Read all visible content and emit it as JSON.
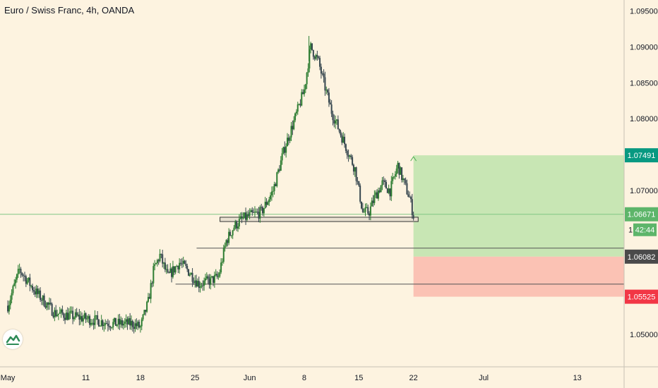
{
  "title": "Euro / Swiss Franc, 4h, OANDA",
  "chart_data": {
    "type": "candlestick",
    "title": "Euro / Swiss Franc, 4h, OANDA",
    "ylim": [
      1.0455,
      1.0965
    ],
    "y_ticks": [
      "1.09500",
      "1.09000",
      "1.08500",
      "1.08000",
      "1.07000",
      "1.05000"
    ],
    "x_ticks": [
      "May",
      "11",
      "18",
      "25",
      "Jun",
      "8",
      "15",
      "22",
      "Jul",
      "13"
    ],
    "x_tick_days": [
      1,
      11,
      18,
      25,
      32,
      39,
      46,
      53,
      62,
      74
    ],
    "x_start_day": 1,
    "x_end_day": 80,
    "series_anchors": [
      [
        0.0,
        1.054
      ],
      [
        1.5,
        1.059
      ],
      [
        3.5,
        1.056
      ],
      [
        6.0,
        1.053
      ],
      [
        8.5,
        1.0525
      ],
      [
        11.0,
        1.052
      ],
      [
        13.5,
        1.0515
      ],
      [
        16.0,
        1.0515
      ],
      [
        17.0,
        1.051
      ],
      [
        18.0,
        1.0545
      ],
      [
        18.7,
        1.059
      ],
      [
        19.5,
        1.061
      ],
      [
        20.5,
        1.058
      ],
      [
        22.0,
        1.06
      ],
      [
        23.0,
        1.059
      ],
      [
        24.5,
        1.057
      ],
      [
        26.0,
        1.0575
      ],
      [
        27.0,
        1.058
      ],
      [
        28.0,
        1.063
      ],
      [
        29.0,
        1.065
      ],
      [
        30.0,
        1.066
      ],
      [
        31.0,
        1.0665
      ],
      [
        32.5,
        1.067
      ],
      [
        34.0,
        1.07
      ],
      [
        35.5,
        1.076
      ],
      [
        36.8,
        1.08
      ],
      [
        38.0,
        1.084
      ],
      [
        38.8,
        1.09
      ],
      [
        39.8,
        1.088
      ],
      [
        40.5,
        1.085
      ],
      [
        41.5,
        1.081
      ],
      [
        43.0,
        1.077
      ],
      [
        44.5,
        1.073
      ],
      [
        45.5,
        1.067
      ],
      [
        46.3,
        1.067
      ],
      [
        47.0,
        1.069
      ],
      [
        48.0,
        1.071
      ],
      [
        49.0,
        1.07
      ],
      [
        50.0,
        1.0735
      ],
      [
        50.8,
        1.071
      ],
      [
        51.5,
        1.069
      ],
      [
        52.0,
        1.0665
      ]
    ],
    "high_mark": 1.0915,
    "annotations": {
      "horizontal_level": 1.06671,
      "support_zone": [
        1.0663,
        1.0657
      ],
      "level_1": 1.062,
      "level_2": 1.057,
      "position": {
        "start_day": 53.0,
        "end_day": 80,
        "target": 1.07491,
        "entry": 1.06082,
        "stop": 1.05525
      }
    },
    "price_labels": [
      {
        "text": "1.07491",
        "value": 1.07491,
        "bg": "#089981"
      },
      {
        "text": "1.06671",
        "value": 1.06671,
        "bg": "#5db56a"
      },
      {
        "text": "1.06082",
        "value": 1.06082,
        "bg": "#4a4a4a"
      },
      {
        "text": "1.05525",
        "value": 1.05525,
        "bg": "#f23645"
      }
    ],
    "countdown": "42:44",
    "countdown_prefix": "1."
  },
  "colors": {
    "background": "#fdf3e0",
    "up": "#2e7d32",
    "down": "#37474f",
    "profit_fill": "#c8e6b4",
    "loss_fill": "#fbc2b4",
    "profit_label": "#089981",
    "current_label": "#5db56a",
    "entry_label": "#4a4a4a",
    "stop_label": "#f23645",
    "axis_text": "#131722",
    "line": "#555555"
  },
  "icons": {
    "logo": "tradingview-logo-icon"
  }
}
